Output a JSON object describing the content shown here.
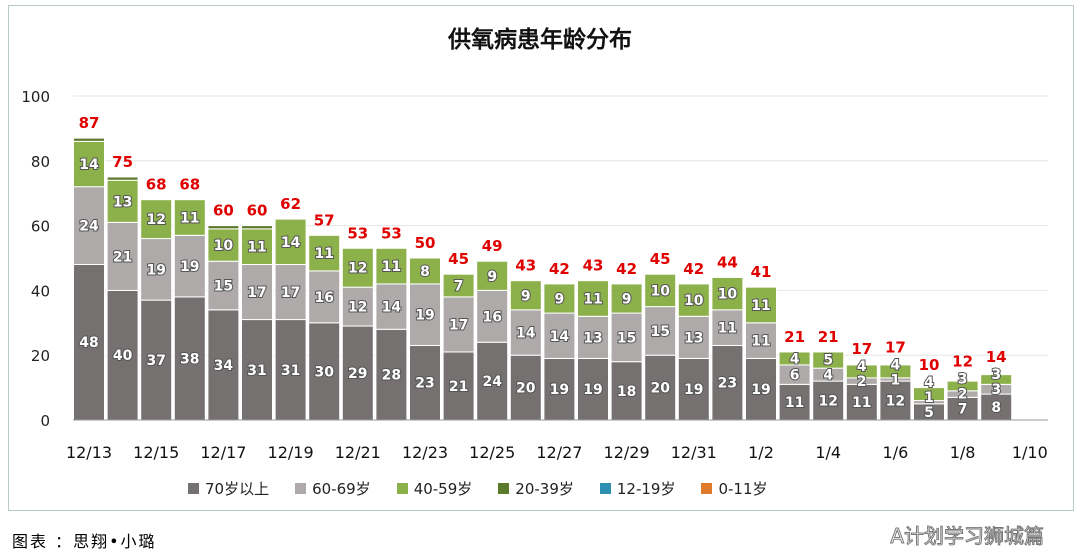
{
  "chart_data": {
    "type": "bar",
    "stacked": true,
    "title": "供氧病患年龄分布",
    "categories": [
      "12/13",
      "12/14",
      "12/15",
      "12/16",
      "12/17",
      "12/18",
      "12/19",
      "12/20",
      "12/21",
      "12/22",
      "12/23",
      "12/24",
      "12/25",
      "12/26",
      "12/27",
      "12/28",
      "12/29",
      "12/30",
      "12/31",
      "1/1",
      "1/2",
      "1/3",
      "1/4",
      "1/5",
      "1/6",
      "1/7",
      "1/8",
      "1/9",
      "1/10"
    ],
    "tick_labels": [
      "12/13",
      "12/15",
      "12/17",
      "12/19",
      "12/21",
      "12/23",
      "12/25",
      "12/27",
      "12/29",
      "12/31",
      "1/2",
      "1/4",
      "1/6",
      "1/8",
      "1/10"
    ],
    "ylim": [
      0,
      100
    ],
    "yticks": [
      0,
      20,
      40,
      60,
      80,
      100
    ],
    "grid": true,
    "legend": "bottom",
    "series": [
      {
        "name": "70岁以上",
        "color": "#767171",
        "values": [
          48,
          40,
          37,
          38,
          34,
          31,
          31,
          30,
          29,
          28,
          23,
          21,
          24,
          20,
          19,
          19,
          18,
          20,
          19,
          23,
          19,
          11,
          12,
          11,
          12,
          5,
          7,
          8,
          null
        ]
      },
      {
        "name": "60-69岁",
        "color": "#aeaaaa",
        "values": [
          24,
          21,
          19,
          19,
          15,
          17,
          17,
          16,
          12,
          14,
          19,
          17,
          16,
          14,
          14,
          13,
          15,
          15,
          13,
          11,
          11,
          6,
          4,
          2,
          1,
          1,
          2,
          3,
          null
        ]
      },
      {
        "name": "40-59岁",
        "color": "#8db14a",
        "values": [
          14,
          13,
          12,
          11,
          10,
          11,
          14,
          11,
          12,
          11,
          8,
          7,
          9,
          9,
          9,
          11,
          9,
          10,
          10,
          10,
          11,
          4,
          5,
          4,
          4,
          4,
          3,
          3,
          null
        ]
      },
      {
        "name": "20-39岁",
        "color": "#5b7a2c",
        "values": [
          1,
          1,
          0,
          0,
          1,
          1,
          0,
          0,
          0,
          0,
          0,
          0,
          0,
          0,
          0,
          0,
          0,
          0,
          0,
          0,
          0,
          0,
          0,
          0,
          0,
          0,
          0,
          0,
          null
        ]
      },
      {
        "name": "12-19岁",
        "color": "#2e8fb0",
        "values": [
          0,
          0,
          0,
          0,
          0,
          0,
          0,
          0,
          0,
          0,
          0,
          0,
          0,
          0,
          0,
          0,
          0,
          0,
          0,
          0,
          0,
          0,
          0,
          0,
          0,
          0,
          0,
          0,
          null
        ]
      },
      {
        "name": "0-11岁",
        "color": "#e07b2c",
        "values": [
          0,
          0,
          0,
          0,
          0,
          0,
          0,
          0,
          0,
          0,
          0,
          0,
          0,
          0,
          0,
          0,
          0,
          0,
          0,
          0,
          0,
          0,
          0,
          0,
          0,
          0,
          0,
          0,
          null
        ]
      }
    ],
    "totals": [
      87,
      75,
      68,
      68,
      60,
      60,
      62,
      57,
      53,
      53,
      50,
      45,
      49,
      43,
      42,
      43,
      42,
      45,
      42,
      44,
      41,
      21,
      21,
      17,
      17,
      10,
      12,
      14,
      null
    ],
    "total_color": "#e00000"
  },
  "footer": "图表 ：思翔•小璐",
  "watermark": "A计划学习狮城篇"
}
